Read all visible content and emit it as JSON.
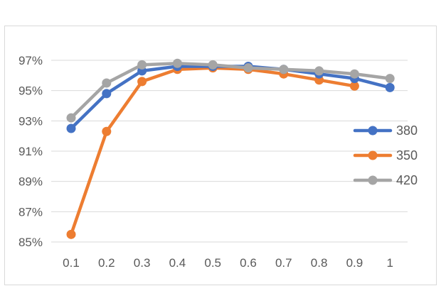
{
  "chart_data": {
    "type": "line",
    "title": "",
    "xlabel": "",
    "ylabel": "",
    "categories": [
      "0.1",
      "0.2",
      "0.3",
      "0.4",
      "0.5",
      "0.6",
      "0.7",
      "0.8",
      "0.9",
      "1"
    ],
    "ylim": [
      85,
      97
    ],
    "y_ticks": [
      85,
      87,
      89,
      91,
      93,
      95,
      97
    ],
    "y_tick_labels": [
      "85%",
      "87%",
      "89%",
      "91%",
      "93%",
      "95%",
      "97%"
    ],
    "grid": "horizontal",
    "legend": "right",
    "series": [
      {
        "name": "380",
        "color": "#4472c4",
        "values": [
          92.5,
          94.8,
          96.3,
          96.6,
          96.6,
          96.6,
          96.4,
          96.1,
          95.8,
          95.2
        ]
      },
      {
        "name": "350",
        "color": "#ed7d31",
        "values": [
          85.5,
          92.3,
          95.6,
          96.4,
          96.5,
          96.4,
          96.1,
          95.7,
          95.3,
          null
        ]
      },
      {
        "name": "420",
        "color": "#a5a5a5",
        "values": [
          93.2,
          95.5,
          96.7,
          96.8,
          96.7,
          96.5,
          96.4,
          96.3,
          96.1,
          95.8
        ]
      }
    ],
    "gridline_color": "#d9d9d9"
  }
}
